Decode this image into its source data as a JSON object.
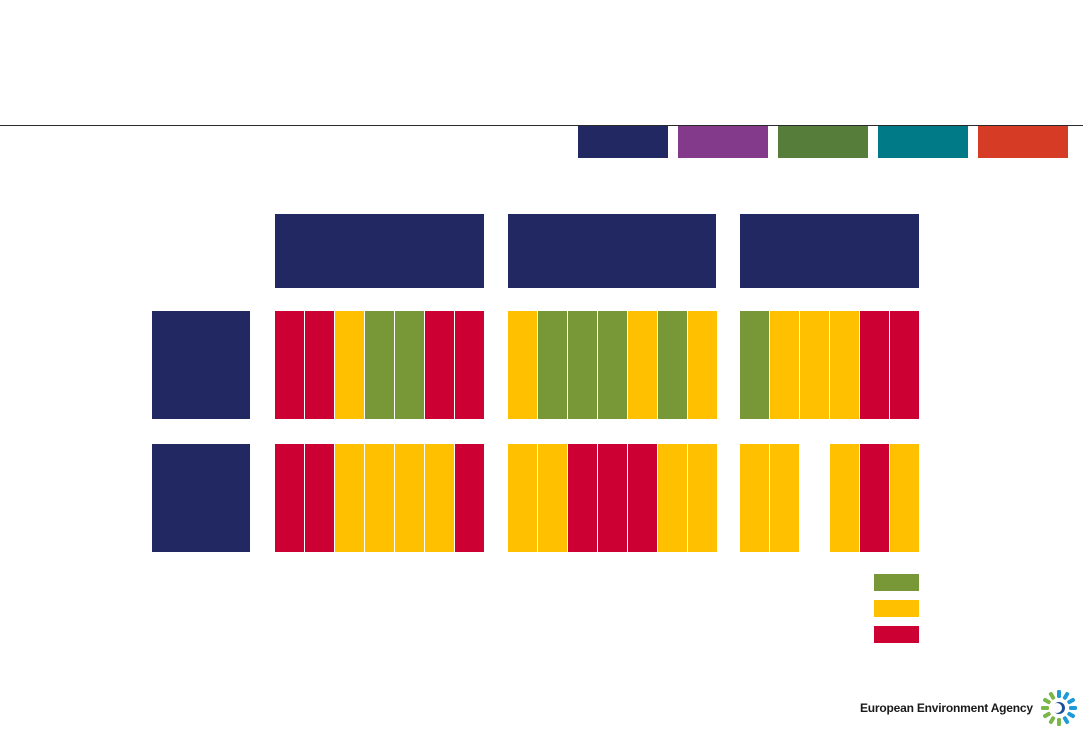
{
  "colors": {
    "navy": "#212862",
    "green": "#789838",
    "yellow": "#FFC000",
    "red": "#CC0033",
    "empty": "#ffffff"
  },
  "tabs": [
    {
      "name": "navy",
      "color": "#212862"
    },
    {
      "name": "purple",
      "color": "#833A8B"
    },
    {
      "name": "green",
      "color": "#567E3A"
    },
    {
      "name": "teal",
      "color": "#007A86"
    },
    {
      "name": "orange-red",
      "color": "#D63B25"
    }
  ],
  "grid": {
    "row1": [
      [
        "red",
        "red",
        "yellow",
        "green",
        "green",
        "red",
        "red"
      ],
      [
        "yellow",
        "green",
        "green",
        "green",
        "yellow",
        "green",
        "yellow"
      ],
      [
        "green",
        "yellow",
        "yellow",
        "yellow",
        "red",
        "red"
      ]
    ],
    "row2": [
      [
        "red",
        "red",
        "yellow",
        "yellow",
        "yellow",
        "yellow",
        "red"
      ],
      [
        "yellow",
        "yellow",
        "red",
        "red",
        "red",
        "yellow",
        "yellow"
      ],
      [
        "yellow",
        "yellow",
        "empty",
        "yellow",
        "red",
        "yellow"
      ]
    ]
  },
  "legend": [
    "green",
    "yellow",
    "red"
  ],
  "footer": {
    "agency_name": "European Environment Agency"
  }
}
